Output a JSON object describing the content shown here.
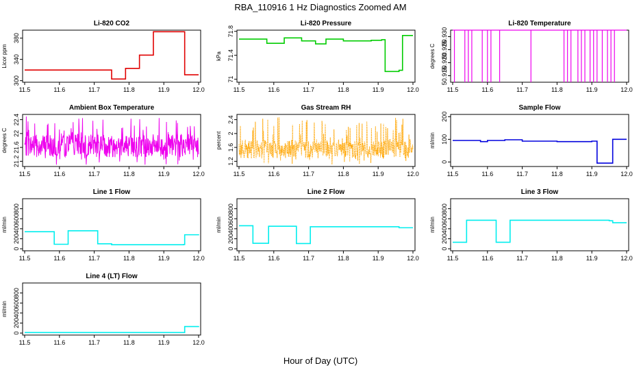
{
  "figure": {
    "title": "RBA_110916  1 Hz Diagnostics Zoomed AM",
    "xlabel": "Hour of Day (UTC)"
  },
  "chart_data": [
    {
      "id": "co2",
      "type": "line",
      "title": "Li-820 CO2",
      "ylabel": "Licor ppm",
      "color": "#e00000",
      "xlim": [
        11.5,
        12.0
      ],
      "ylim": [
        297,
        395
      ],
      "yticks": [
        300,
        340,
        380
      ],
      "series": [
        {
          "x": [
            11.5,
            11.7,
            11.75,
            11.79,
            11.83,
            11.87,
            11.96,
            12.0
          ],
          "y": [
            320,
            320,
            303,
            323,
            348,
            392,
            311,
            311
          ]
        }
      ]
    },
    {
      "id": "pressure",
      "type": "line",
      "title": "Li-820 Pressure",
      "ylabel": "kPa",
      "color": "#00cc00",
      "xlim": [
        11.5,
        12.0
      ],
      "ylim": [
        70.95,
        71.82
      ],
      "yticks": [
        71.0,
        71.4,
        71.8
      ],
      "series": [
        {
          "x": [
            11.5,
            11.58,
            11.63,
            11.68,
            11.72,
            11.75,
            11.8,
            11.88,
            11.91,
            11.92,
            11.96,
            11.97,
            12.0
          ],
          "y": [
            71.67,
            71.6,
            71.69,
            71.64,
            71.59,
            71.67,
            71.64,
            71.65,
            71.66,
            71.13,
            71.15,
            71.73,
            71.73
          ]
        }
      ]
    },
    {
      "id": "temperature",
      "type": "line",
      "title": "Li-820 Temperature",
      "ylabel": "degrees C",
      "color": "#ee00ee",
      "xlim": [
        11.5,
        12.0
      ],
      "ylim": [
        50.9125,
        50.9325
      ],
      "yticks": [
        50.915,
        50.92,
        50.925,
        50.93
      ],
      "series": [
        {
          "baseline": 50.9325,
          "dip": 50.9125,
          "dips_at": [
            11.505,
            11.535,
            11.545,
            11.555,
            11.585,
            11.6,
            11.61,
            11.635,
            11.725,
            11.82,
            11.83,
            11.84,
            11.86,
            11.87,
            11.88,
            11.895,
            11.905,
            11.915,
            11.93,
            11.945,
            11.955,
            11.965
          ]
        }
      ]
    },
    {
      "id": "box_temp",
      "type": "line",
      "title": "Ambient Box Temperature",
      "ylabel": "degrees C",
      "color": "#ee00ee",
      "xlim": [
        11.5,
        12.0
      ],
      "ylim": [
        21.05,
        22.55
      ],
      "yticks": [
        21.2,
        21.6,
        22.0,
        22.4
      ],
      "series": [
        {
          "noise_center": 21.65,
          "noise_min": 21.1,
          "noise_max": 22.5
        }
      ]
    },
    {
      "id": "rh",
      "type": "line",
      "title": "Gas Stream RH",
      "ylabel": "percent",
      "color": "#ffa500",
      "xlim": [
        11.5,
        12.0
      ],
      "ylim": [
        1.05,
        2.55
      ],
      "yticks": [
        1.2,
        1.6,
        2.0,
        2.4
      ],
      "series": [
        {
          "noise_center": 1.55,
          "noise_min": 1.1,
          "noise_max": 2.5
        }
      ]
    },
    {
      "id": "sample_flow",
      "type": "line",
      "title": "Sample Flow",
      "ylabel": "ml/min",
      "color": "#0000dd",
      "xlim": [
        11.5,
        12.0
      ],
      "ylim": [
        -20,
        210
      ],
      "yticks": [
        0,
        100,
        200
      ],
      "series": [
        {
          "x": [
            11.5,
            11.58,
            11.6,
            11.65,
            11.7,
            11.8,
            11.9,
            11.915,
            11.955,
            11.96,
            12.0
          ],
          "y": [
            95,
            90,
            95,
            98,
            92,
            90,
            92,
            -5,
            -5,
            100,
            100
          ]
        }
      ]
    },
    {
      "id": "line1",
      "type": "line",
      "title": "Line 1 Flow",
      "ylabel": "ml/min",
      "color": "#00eeee",
      "xlim": [
        11.5,
        12.0
      ],
      "ylim": [
        -40,
        1000
      ],
      "yticks": [
        0,
        200,
        400,
        600,
        800
      ],
      "series": [
        {
          "x": [
            11.5,
            11.585,
            11.625,
            11.71,
            11.75,
            11.957,
            11.96,
            12.0
          ],
          "y": [
            340,
            90,
            360,
            100,
            80,
            85,
            280,
            290
          ]
        }
      ]
    },
    {
      "id": "line2",
      "type": "line",
      "title": "Line 2 Flow",
      "ylabel": "ml/min",
      "color": "#00eeee",
      "xlim": [
        11.5,
        12.0
      ],
      "ylim": [
        -40,
        1000
      ],
      "yticks": [
        0,
        200,
        400,
        600,
        800
      ],
      "series": [
        {
          "x": [
            11.5,
            11.54,
            11.585,
            11.665,
            11.705,
            11.95,
            11.96,
            12.0
          ],
          "y": [
            460,
            110,
            450,
            105,
            440,
            440,
            420,
            420
          ]
        }
      ]
    },
    {
      "id": "line3",
      "type": "line",
      "title": "Line 3 Flow",
      "ylabel": "ml/min",
      "color": "#00eeee",
      "xlim": [
        11.5,
        12.0
      ],
      "ylim": [
        -40,
        1000
      ],
      "yticks": [
        0,
        200,
        400,
        600,
        800
      ],
      "series": [
        {
          "x": [
            11.5,
            11.54,
            11.625,
            11.665,
            11.95,
            11.96,
            12.0
          ],
          "y": [
            130,
            570,
            130,
            570,
            560,
            520,
            520
          ]
        }
      ]
    },
    {
      "id": "line4",
      "type": "line",
      "title": "Line 4 (LT) Flow",
      "ylabel": "ml/min",
      "color": "#00eeee",
      "xlim": [
        11.5,
        12.0
      ],
      "ylim": [
        -40,
        1000
      ],
      "yticks": [
        0,
        200,
        400,
        600,
        800
      ],
      "series": [
        {
          "x": [
            11.5,
            11.957,
            11.96,
            12.0
          ],
          "y": [
            10,
            10,
            130,
            140
          ]
        }
      ]
    }
  ],
  "xticks": [
    11.5,
    11.6,
    11.7,
    11.8,
    11.9,
    12.0
  ]
}
